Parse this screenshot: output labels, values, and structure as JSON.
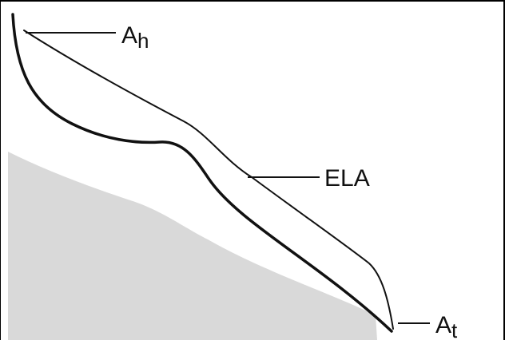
{
  "diagram": {
    "labels": {
      "ah": {
        "base": "A",
        "sub": "h"
      },
      "ela": "ELA",
      "at": {
        "base": "A",
        "sub": "t"
      }
    },
    "colors": {
      "bedrock_fill": "#d9d9d9",
      "line": "#111111",
      "frame": "#000000"
    }
  }
}
